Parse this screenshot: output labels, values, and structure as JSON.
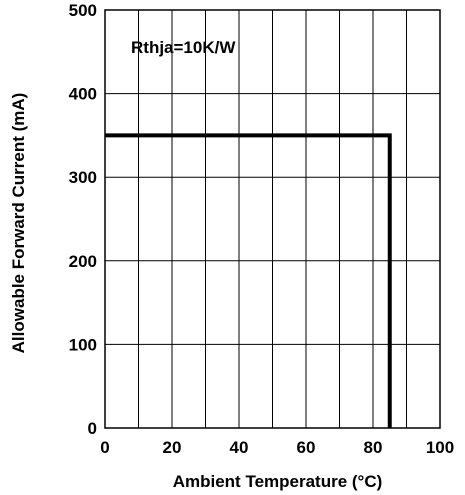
{
  "chart_data": {
    "type": "line",
    "title": "",
    "xlabel": "Ambient Temperature (°C)",
    "ylabel": "Allowable Forward Current (mA)",
    "xlim": [
      0,
      100
    ],
    "ylim": [
      0,
      500
    ],
    "x_ticks": [
      "0",
      "20",
      "40",
      "60",
      "80",
      "100"
    ],
    "y_ticks": [
      "0",
      "100",
      "200",
      "300",
      "400",
      "500"
    ],
    "grid": true,
    "annotation": "Rthja=10K/W",
    "series": [
      {
        "x": [
          0,
          85,
          85
        ],
        "y": [
          350,
          350,
          0
        ]
      }
    ],
    "line_color": "#000000"
  }
}
